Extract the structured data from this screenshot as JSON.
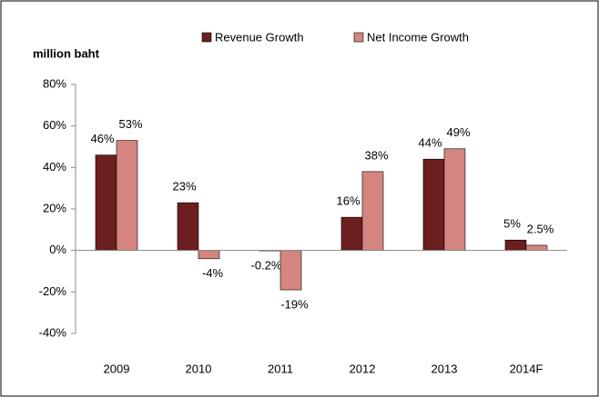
{
  "chart_data": {
    "type": "bar",
    "y_label": "million baht",
    "categories": [
      "2009",
      "2010",
      "2011",
      "2012",
      "2013",
      "2014F"
    ],
    "series": [
      {
        "name": "Revenue Growth",
        "color": "#6b1f1f",
        "values": [
          46,
          23,
          -0.2,
          16,
          44,
          5
        ],
        "value_labels": [
          "46%",
          "23%",
          "-0.2%",
          "16%",
          "44%",
          "5%"
        ]
      },
      {
        "name": "Net Income Growth",
        "color": "#d4857f",
        "values": [
          53,
          -4,
          -19,
          38,
          49,
          2.5
        ],
        "value_labels": [
          "53%",
          "-4%",
          "-19%",
          "38%",
          "49%",
          "2.5%"
        ]
      }
    ],
    "ylim": [
      -40,
      80
    ],
    "yticks": [
      {
        "value": -40,
        "label": "-40%"
      },
      {
        "value": -20,
        "label": "-20%"
      },
      {
        "value": 0,
        "label": "0%"
      },
      {
        "value": 20,
        "label": "20%"
      },
      {
        "value": 40,
        "label": "40%"
      },
      {
        "value": 60,
        "label": "60%"
      },
      {
        "value": 80,
        "label": "80%"
      }
    ],
    "grid": false,
    "legend": "top"
  }
}
